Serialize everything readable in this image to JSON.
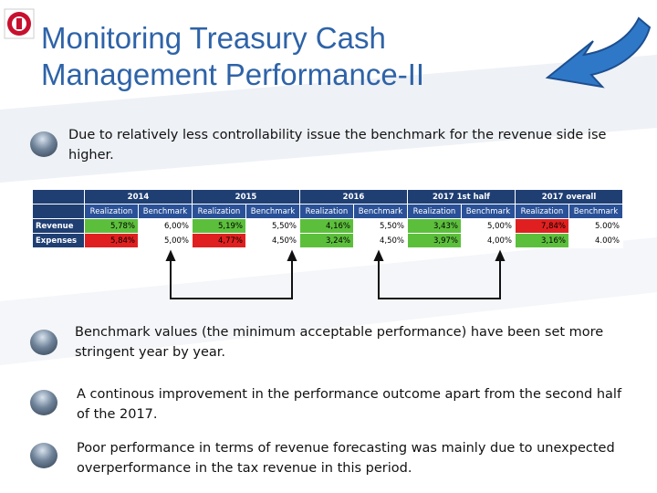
{
  "title": "Monitoring Treasury Cash Management Performance-II",
  "bullets": [
    "Due to relatively less controllability issue the benchmark for the revenue side ise higher.",
    "Benchmark values (the minimum acceptable performance) have been set more stringent year by year.",
    "A continous improvement in the performance outcome apart from the second half of the 2017.",
    "Poor performance in terms of revenue forecasting was mainly  due to unexpected overperformance in the tax revenue in this period."
  ],
  "table": {
    "years": [
      "2014",
      "2015",
      "2016",
      "2017 1st half",
      "2017 overall"
    ],
    "subheaders": [
      "Realization",
      "Benchmark",
      "Realization",
      "Benchmark",
      "Realization",
      "Benchmark",
      "Realization",
      "Benchmark",
      "Realization",
      "Benchmark"
    ],
    "rows": [
      {
        "label": "Revenue",
        "cells": [
          "5,78%",
          "6,00%",
          "5,19%",
          "5,50%",
          "4,16%",
          "5,50%",
          "3,43%",
          "5,00%",
          "7,84%",
          "5.00%"
        ],
        "colors": [
          "#5cbf3c",
          "#ffffff",
          "#5cbf3c",
          "#ffffff",
          "#5cbf3c",
          "#ffffff",
          "#5cbf3c",
          "#ffffff",
          "#e02020",
          "#ffffff"
        ]
      },
      {
        "label": "Expenses",
        "cells": [
          "5,84%",
          "5,00%",
          "4,77%",
          "4,50%",
          "3,24%",
          "4,50%",
          "3,97%",
          "4,00%",
          "3,16%",
          "4.00%"
        ],
        "colors": [
          "#e02020",
          "#ffffff",
          "#e02020",
          "#ffffff",
          "#5cbf3c",
          "#ffffff",
          "#5cbf3c",
          "#ffffff",
          "#5cbf3c",
          "#ffffff"
        ]
      }
    ]
  }
}
